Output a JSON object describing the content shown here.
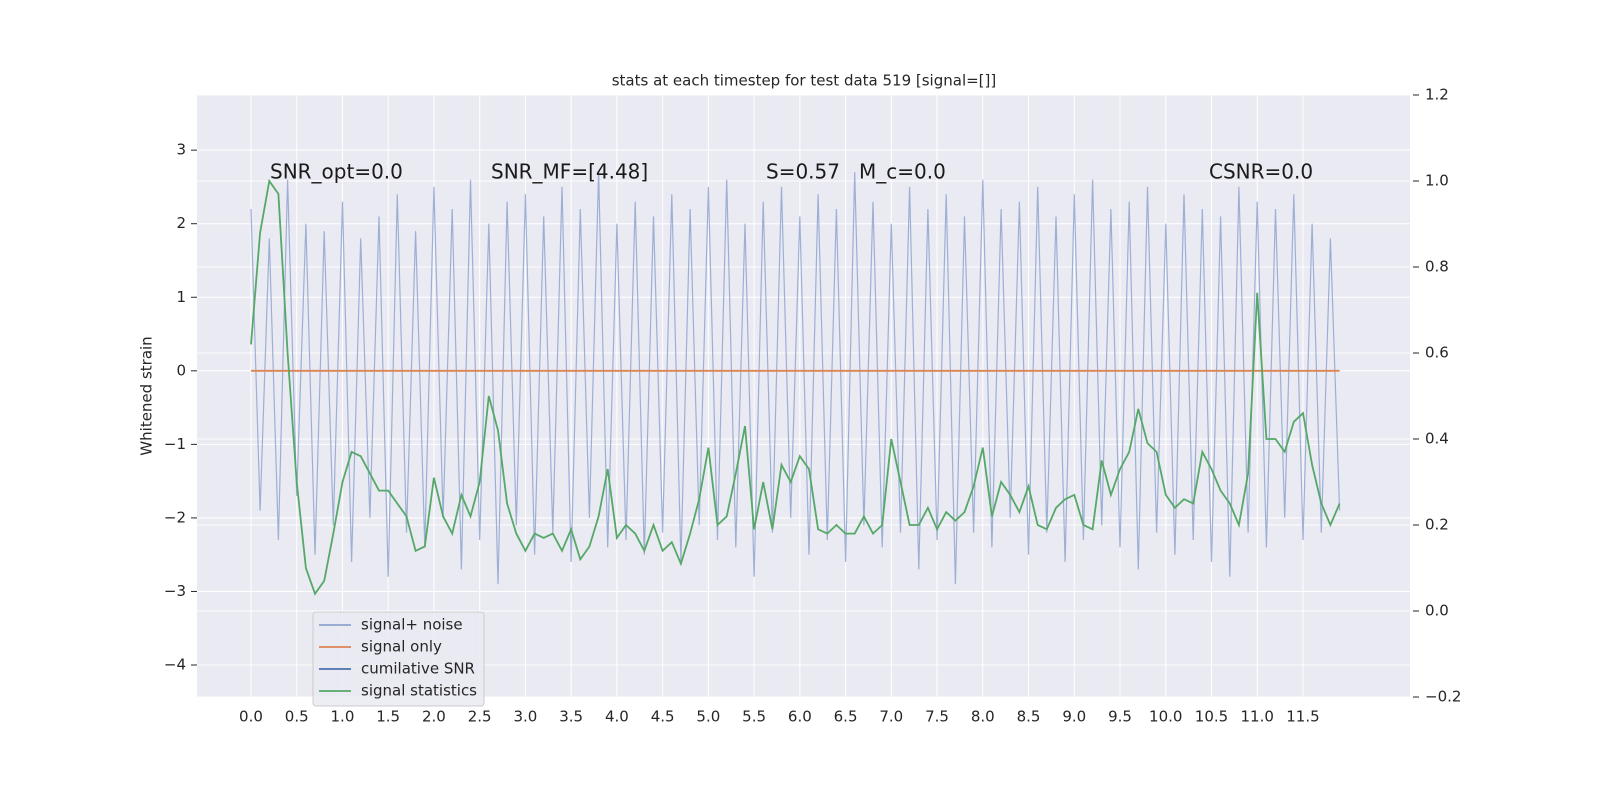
{
  "chart_data": {
    "type": "line",
    "title": "stats at each timestep for test data 519 [signal=[]]",
    "ylabel": "Whitened strain",
    "annotations": [
      "SNR_opt=0.0",
      "SNR_MF=[4.48]",
      "S=0.57",
      "M_c=0.0",
      "CSNR=0.0"
    ],
    "x": [
      0,
      0.1,
      0.2,
      0.3,
      0.4,
      0.5,
      0.6,
      0.7,
      0.8,
      0.9,
      1,
      1.1,
      1.2,
      1.3,
      1.4,
      1.5,
      1.6,
      1.7,
      1.8,
      1.9,
      2,
      2.1,
      2.2,
      2.3,
      2.4,
      2.5,
      2.6,
      2.7,
      2.8,
      2.9,
      3,
      3.1,
      3.2,
      3.3,
      3.4,
      3.5,
      3.6,
      3.7,
      3.8,
      3.9,
      4,
      4.1,
      4.2,
      4.3,
      4.4,
      4.5,
      4.6,
      4.7,
      4.8,
      4.9,
      5,
      5.1,
      5.2,
      5.3,
      5.4,
      5.5,
      5.6,
      5.7,
      5.8,
      5.9,
      6,
      6.1,
      6.2,
      6.3,
      6.4,
      6.5,
      6.6,
      6.7,
      6.8,
      6.9,
      7,
      7.1,
      7.2,
      7.3,
      7.4,
      7.5,
      7.6,
      7.7,
      7.8,
      7.9,
      8,
      8.1,
      8.2,
      8.3,
      8.4,
      8.5,
      8.6,
      8.7,
      8.8,
      8.9,
      9,
      9.1,
      9.2,
      9.3,
      9.4,
      9.5,
      9.6,
      9.7,
      9.8,
      9.9,
      10,
      10.1,
      10.2,
      10.3,
      10.4,
      10.5,
      10.6,
      10.7,
      10.8,
      10.9,
      11,
      11.1,
      11.2,
      11.3,
      11.4,
      11.5,
      11.6,
      11.7,
      11.8,
      11.9
    ],
    "series": [
      {
        "name": "signal+ noise",
        "color": "#8fa5cf",
        "values": [
          2.2,
          -1.9,
          1.8,
          -2.3,
          2.6,
          -1.7,
          2.0,
          -2.5,
          1.9,
          -2.1,
          2.3,
          -2.6,
          1.8,
          -2.0,
          2.1,
          -2.8,
          2.4,
          -2.2,
          1.9,
          -2.4,
          2.5,
          -2.0,
          2.2,
          -2.7,
          2.6,
          -2.3,
          2.0,
          -2.9,
          2.3,
          -2.1,
          2.4,
          -2.5,
          2.1,
          -2.2,
          2.5,
          -2.6,
          2.2,
          -2.0,
          2.7,
          -2.4,
          2.0,
          -2.3,
          2.3,
          -2.5,
          2.1,
          -2.2,
          2.4,
          -2.6,
          2.2,
          -2.1,
          2.5,
          -2.3,
          2.6,
          -2.4,
          2.0,
          -2.8,
          2.3,
          -2.2,
          2.5,
          -2.0,
          2.1,
          -2.5,
          2.4,
          -2.3,
          2.2,
          -2.6,
          2.7,
          -2.1,
          2.3,
          -2.4,
          2.0,
          -2.2,
          2.5,
          -2.7,
          2.2,
          -2.3,
          2.4,
          -2.9,
          2.1,
          -2.2,
          2.6,
          -2.4,
          2.2,
          -2.0,
          2.3,
          -2.5,
          2.5,
          -2.2,
          2.1,
          -2.6,
          2.4,
          -2.3,
          2.6,
          -2.1,
          2.2,
          -2.4,
          2.3,
          -2.7,
          2.5,
          -2.2,
          2.0,
          -2.5,
          2.4,
          -2.3,
          2.2,
          -2.6,
          2.1,
          -2.8,
          2.5,
          -2.2,
          2.3,
          -2.4,
          2.2,
          -2.0,
          2.4,
          -2.3,
          2.0,
          -2.2,
          1.8,
          -1.9
        ]
      },
      {
        "name": "signal only",
        "color": "#dd8452",
        "values": [
          0,
          0,
          0,
          0,
          0,
          0,
          0,
          0,
          0,
          0,
          0,
          0,
          0,
          0,
          0,
          0,
          0,
          0,
          0,
          0,
          0,
          0,
          0,
          0,
          0,
          0,
          0,
          0,
          0,
          0,
          0,
          0,
          0,
          0,
          0,
          0,
          0,
          0,
          0,
          0,
          0,
          0,
          0,
          0,
          0,
          0,
          0,
          0,
          0,
          0,
          0,
          0,
          0,
          0,
          0,
          0,
          0,
          0,
          0,
          0,
          0,
          0,
          0,
          0,
          0,
          0,
          0,
          0,
          0,
          0,
          0,
          0,
          0,
          0,
          0,
          0,
          0,
          0,
          0,
          0,
          0,
          0,
          0,
          0,
          0,
          0,
          0,
          0,
          0,
          0,
          0,
          0,
          0,
          0,
          0,
          0,
          0,
          0,
          0,
          0,
          0,
          0,
          0,
          0,
          0,
          0,
          0,
          0,
          0,
          0,
          0,
          0,
          0,
          0,
          0,
          0,
          0,
          0,
          0,
          0
        ]
      },
      {
        "name": "cumilative SNR",
        "color": "#4c72b0",
        "values": [
          null,
          null,
          null,
          null,
          null,
          null,
          null,
          null,
          null,
          null,
          null,
          null,
          null,
          null,
          null,
          null,
          null,
          null,
          null,
          null,
          null,
          null,
          null,
          null,
          null,
          null,
          null,
          null,
          null,
          null,
          null,
          null,
          null,
          null,
          null,
          null,
          null,
          null,
          null,
          null,
          null,
          null,
          null,
          null,
          null,
          null,
          null,
          null,
          null,
          null,
          null,
          null,
          null,
          null,
          null,
          null,
          null,
          null,
          null,
          null,
          null,
          null,
          null,
          null,
          null,
          null,
          null,
          null,
          null,
          null,
          null,
          null,
          null,
          null,
          null,
          null,
          null,
          null,
          null,
          null,
          null,
          null,
          null,
          null,
          null,
          null,
          null,
          null,
          null,
          null,
          null,
          null,
          null,
          null,
          null,
          null,
          null,
          null,
          null,
          null,
          null,
          null,
          null,
          null,
          null,
          null,
          null,
          null,
          null,
          null,
          null,
          null,
          null,
          null,
          null,
          null,
          null,
          null,
          null,
          null
        ]
      },
      {
        "name": "signal statistics",
        "color": "#55a868",
        "axis": "y2",
        "values": [
          0.62,
          0.88,
          1.0,
          0.97,
          0.6,
          0.3,
          0.1,
          0.04,
          0.07,
          0.18,
          0.3,
          0.37,
          0.36,
          0.32,
          0.28,
          0.28,
          0.25,
          0.22,
          0.14,
          0.15,
          0.31,
          0.22,
          0.18,
          0.27,
          0.22,
          0.3,
          0.5,
          0.42,
          0.25,
          0.18,
          0.14,
          0.18,
          0.17,
          0.18,
          0.14,
          0.19,
          0.12,
          0.15,
          0.22,
          0.33,
          0.17,
          0.2,
          0.18,
          0.14,
          0.2,
          0.14,
          0.16,
          0.11,
          0.18,
          0.26,
          0.38,
          0.2,
          0.22,
          0.32,
          0.43,
          0.19,
          0.3,
          0.19,
          0.34,
          0.3,
          0.36,
          0.33,
          0.19,
          0.18,
          0.2,
          0.18,
          0.18,
          0.22,
          0.18,
          0.2,
          0.4,
          0.3,
          0.2,
          0.2,
          0.24,
          0.19,
          0.23,
          0.21,
          0.23,
          0.29,
          0.38,
          0.22,
          0.3,
          0.27,
          0.23,
          0.29,
          0.2,
          0.19,
          0.24,
          0.26,
          0.27,
          0.2,
          0.19,
          0.35,
          0.27,
          0.33,
          0.37,
          0.47,
          0.39,
          0.37,
          0.27,
          0.24,
          0.26,
          0.25,
          0.37,
          0.33,
          0.28,
          0.25,
          0.2,
          0.32,
          0.74,
          0.4,
          0.4,
          0.37,
          0.44,
          0.46,
          0.34,
          0.25,
          0.2,
          0.25
        ]
      }
    ],
    "xlim": [
      -0.59,
      12.67
    ],
    "xticks": [
      {
        "value": 0,
        "label": "0.0"
      },
      {
        "value": 0.5,
        "label": "0.5"
      },
      {
        "value": 1,
        "label": "1.0"
      },
      {
        "value": 1.5,
        "label": "1.5"
      },
      {
        "value": 2,
        "label": "2.0"
      },
      {
        "value": 2.5,
        "label": "2.5"
      },
      {
        "value": 3,
        "label": "3.0"
      },
      {
        "value": 3.5,
        "label": "3.5"
      },
      {
        "value": 4,
        "label": "4.0"
      },
      {
        "value": 4.5,
        "label": "4.5"
      },
      {
        "value": 5,
        "label": "5.0"
      },
      {
        "value": 5.5,
        "label": "5.5"
      },
      {
        "value": 6,
        "label": "6.0"
      },
      {
        "value": 6.5,
        "label": "6.5"
      },
      {
        "value": 7,
        "label": "7.0"
      },
      {
        "value": 7.5,
        "label": "7.5"
      },
      {
        "value": 8,
        "label": "8.0"
      },
      {
        "value": 8.5,
        "label": "8.5"
      },
      {
        "value": 9,
        "label": "9.0"
      },
      {
        "value": 9.5,
        "label": "9.5"
      },
      {
        "value": 10,
        "label": "10.0"
      },
      {
        "value": 10.5,
        "label": "10.5"
      },
      {
        "value": 11,
        "label": "11.0"
      },
      {
        "value": 11.5,
        "label": "11.5"
      }
    ],
    "ylim": [
      -4.435,
      3.75
    ],
    "yticks": [
      {
        "value": -4,
        "label": "−4"
      },
      {
        "value": -3,
        "label": "−3"
      },
      {
        "value": -2,
        "label": "−2"
      },
      {
        "value": -1,
        "label": "−1"
      },
      0,
      1,
      2,
      3
    ],
    "y2lim": [
      -0.2,
      1.2
    ],
    "y2ticks": [
      {
        "value": -0.2,
        "label": "−0.2"
      },
      {
        "value": 0,
        "label": "0.0"
      },
      {
        "value": 0.2,
        "label": "0.2"
      },
      {
        "value": 0.4,
        "label": "0.4"
      },
      {
        "value": 0.6,
        "label": "0.6"
      },
      {
        "value": 0.8,
        "label": "0.8"
      },
      {
        "value": 1,
        "label": "1.0"
      },
      {
        "value": 1.2,
        "label": "1.2"
      }
    ],
    "grid": true,
    "legend": "lower left"
  }
}
